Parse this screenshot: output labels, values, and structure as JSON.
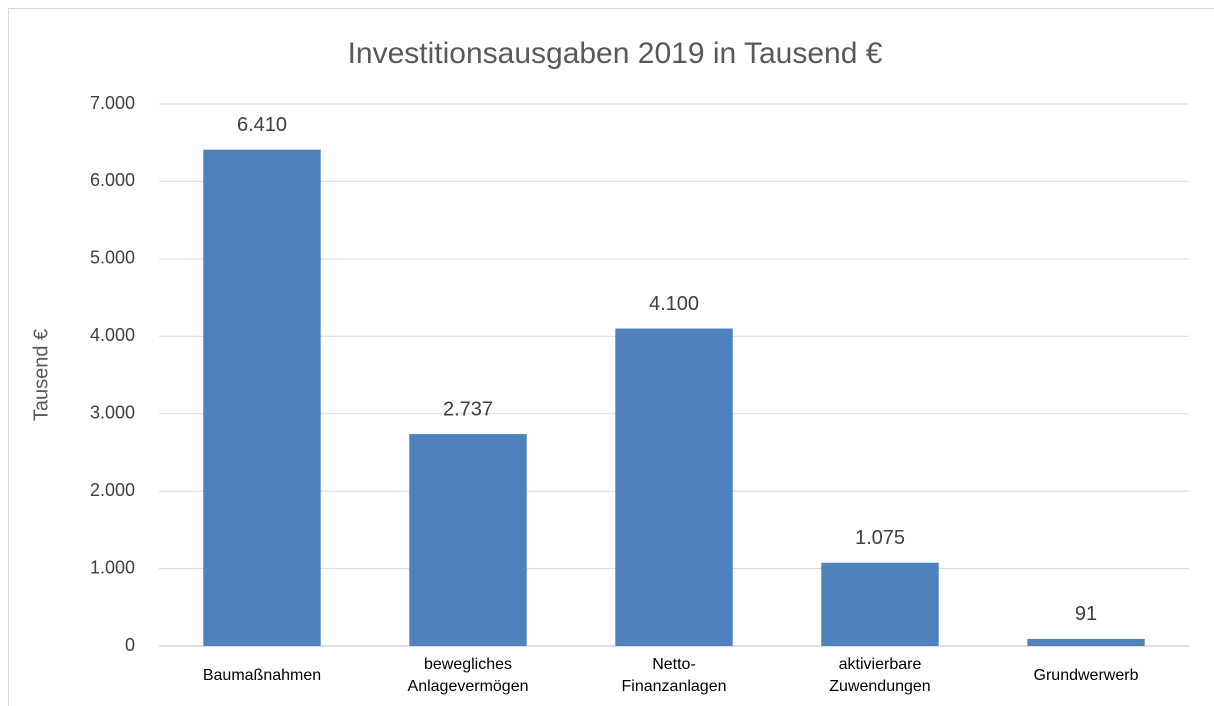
{
  "chart_data": {
    "type": "bar",
    "title": "Investitionsausgaben 2019 in Tausend €",
    "y_label": "Tausend €",
    "categories": [
      "Baumaßnahmen",
      "bewegliches\nAnlagevermögen",
      "Netto-\nFinanzanlagen",
      "aktivierbare\nZuwendungen",
      "Grundwerwerb"
    ],
    "values": [
      6410,
      2737,
      4100,
      1075,
      91
    ],
    "value_labels": [
      "6.410",
      "2.737",
      "4.100",
      "1.075",
      "91"
    ],
    "color": "#4f81bd",
    "ylim": [
      0,
      7000
    ],
    "yticks": [
      0,
      {
        "value": 1000,
        "label": "1.000"
      },
      {
        "value": 2000,
        "label": "2.000"
      },
      {
        "value": 3000,
        "label": "3.000"
      },
      {
        "value": 4000,
        "label": "4.000"
      },
      {
        "value": 5000,
        "label": "5.000"
      },
      {
        "value": 6000,
        "label": "6.000"
      },
      {
        "value": 7000,
        "label": "7.000"
      }
    ],
    "grid": true
  }
}
